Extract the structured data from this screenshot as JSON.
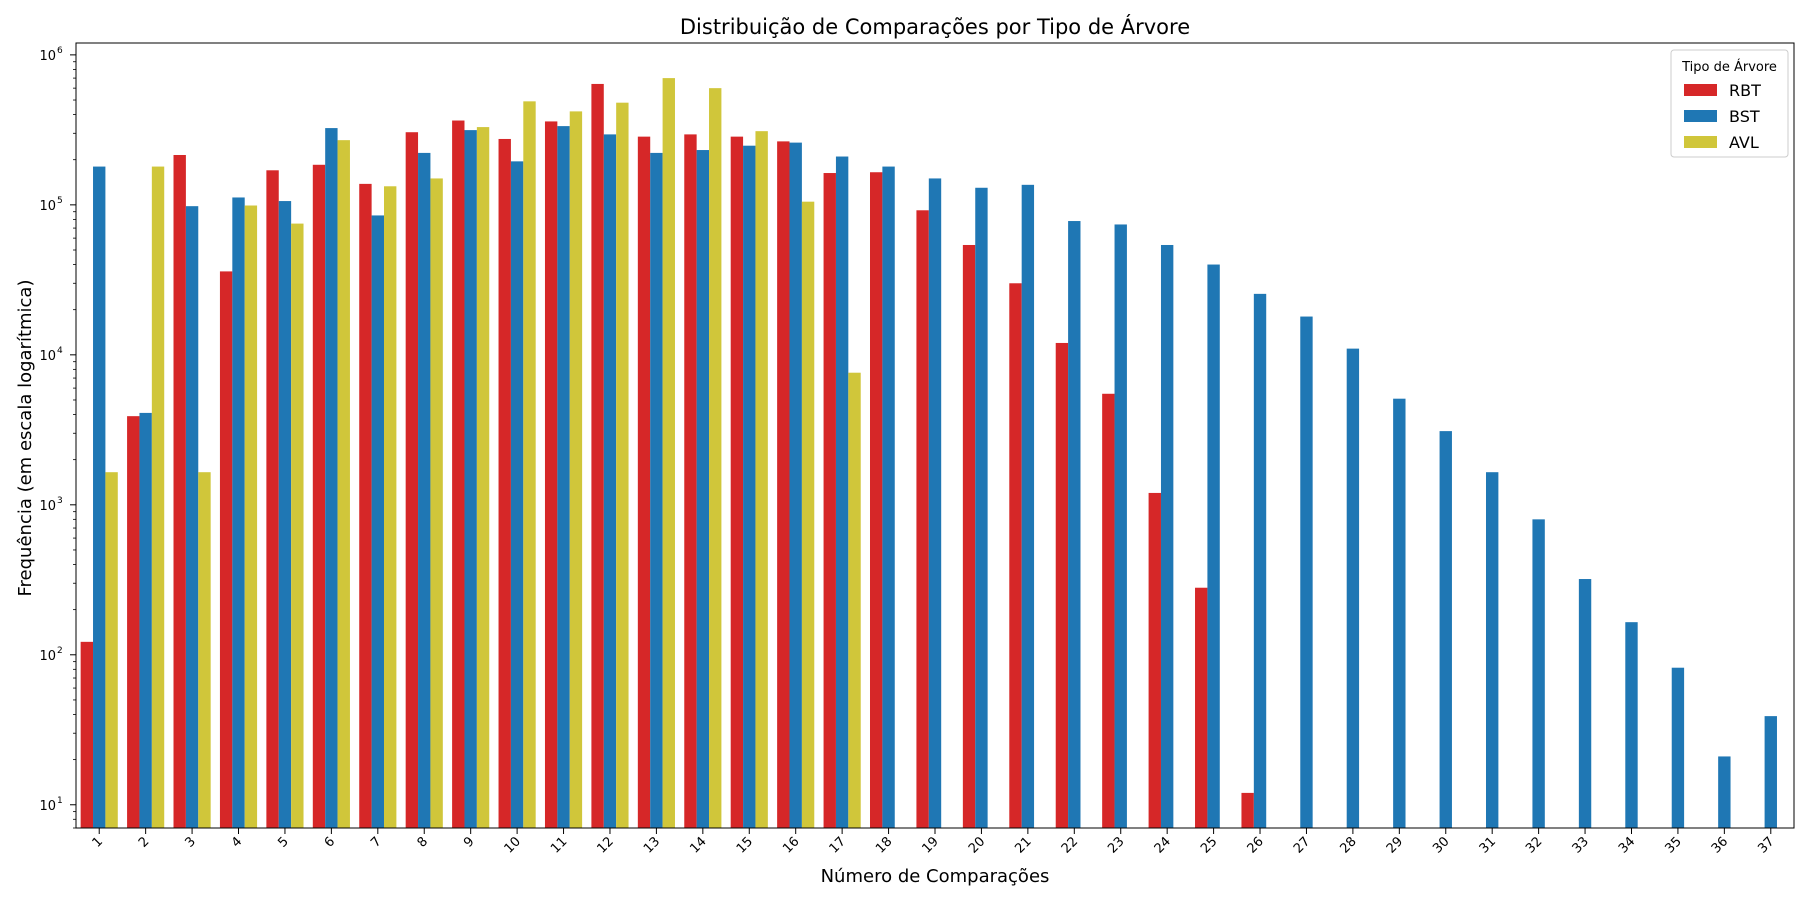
{
  "chart_data": {
    "type": "bar",
    "title": "Distribuição de Comparações por Tipo de Árvore",
    "xlabel": "Número de Comparações",
    "ylabel": "Frequência (em escala logarítmica)",
    "yscale": "log",
    "ylim": [
      7,
      1200000
    ],
    "yticks": [
      {
        "value": 10,
        "base": "10",
        "exp": "1"
      },
      {
        "value": 100,
        "base": "10",
        "exp": "2"
      },
      {
        "value": 1000,
        "base": "10",
        "exp": "3"
      },
      {
        "value": 10000,
        "base": "10",
        "exp": "4"
      },
      {
        "value": 100000,
        "base": "10",
        "exp": "5"
      },
      {
        "value": 1000000,
        "base": "10",
        "exp": "6"
      }
    ],
    "grid": false,
    "legend": {
      "title": "Tipo de Árvore",
      "placement": "top-right"
    },
    "categories": [
      "1",
      "2",
      "3",
      "4",
      "5",
      "6",
      "7",
      "8",
      "9",
      "10",
      "11",
      "12",
      "13",
      "14",
      "15",
      "16",
      "17",
      "18",
      "19",
      "20",
      "21",
      "22",
      "23",
      "24",
      "25",
      "26",
      "27",
      "28",
      "29",
      "30",
      "31",
      "32",
      "33",
      "34",
      "35",
      "36",
      "37"
    ],
    "series": [
      {
        "name": "RBT",
        "color": "#d62728",
        "values": [
          122,
          3900,
          215000,
          36000,
          170000,
          185000,
          138000,
          305000,
          365000,
          275000,
          360000,
          640000,
          285000,
          295000,
          285000,
          265000,
          163000,
          165000,
          92000,
          54000,
          30000,
          12000,
          5500,
          1200,
          280,
          12,
          null,
          null,
          null,
          null,
          null,
          null,
          null,
          null,
          null,
          null,
          null
        ]
      },
      {
        "name": "BST",
        "color": "#1f77b4",
        "values": [
          180000,
          4100,
          98000,
          112000,
          106000,
          325000,
          85000,
          222000,
          315000,
          195000,
          335000,
          295000,
          222000,
          232000,
          248000,
          260000,
          210000,
          180000,
          150000,
          130000,
          136000,
          78000,
          74000,
          54000,
          40000,
          25500,
          18000,
          11000,
          5100,
          3100,
          1650,
          800,
          320,
          165,
          82,
          21,
          39
        ]
      },
      {
        "name": "AVL",
        "color": "#d0c63a",
        "values": [
          1650,
          180000,
          1650,
          99000,
          75000,
          270000,
          133000,
          150000,
          330000,
          490000,
          420000,
          480000,
          700000,
          600000,
          310000,
          105000,
          7600,
          null,
          null,
          null,
          null,
          null,
          null,
          null,
          null,
          null,
          null,
          null,
          null,
          null,
          null,
          null,
          null,
          null,
          null,
          null,
          null
        ]
      }
    ]
  }
}
